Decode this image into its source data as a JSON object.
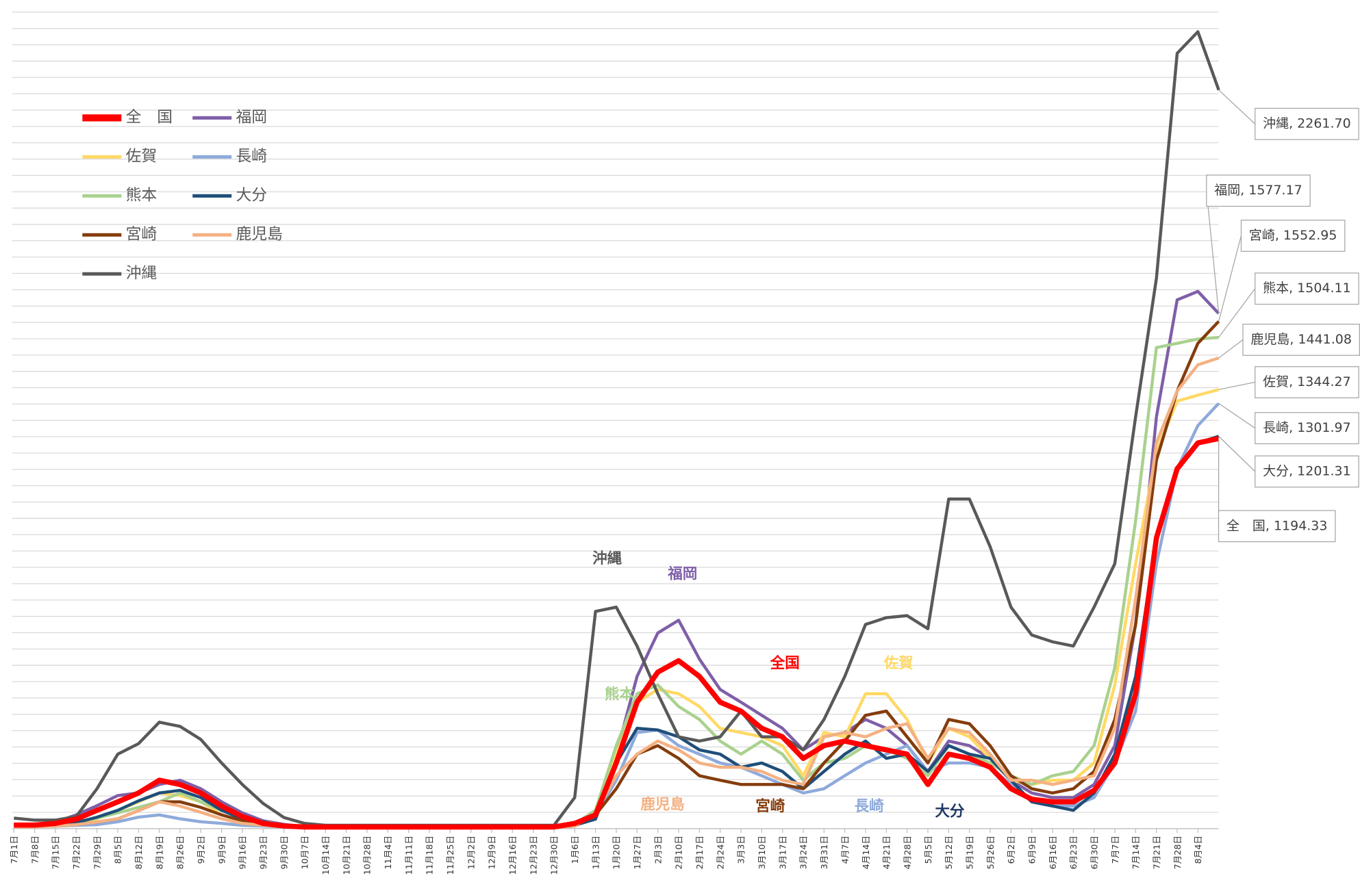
{
  "chart_data": {
    "type": "line",
    "categories": [
      "7月1日",
      "7月8日",
      "7月15日",
      "7月22日",
      "7月29日",
      "8月5日",
      "8月12日",
      "8月19日",
      "8月26日",
      "9月2日",
      "9月9日",
      "9月16日",
      "9月23日",
      "9月30日",
      "10月7日",
      "10月14日",
      "10月21日",
      "10月28日",
      "11月4日",
      "11月11日",
      "11月18日",
      "11月25日",
      "12月2日",
      "12月9日",
      "12月16日",
      "12月23日",
      "12月30日",
      "1月6日",
      "1月13日",
      "1月20日",
      "1月27日",
      "2月3日",
      "2月10日",
      "2月17日",
      "2月24日",
      "3月3日",
      "3月10日",
      "3月17日",
      "3月24日",
      "3月31日",
      "4月7日",
      "4月14日",
      "4月21日",
      "4月28日",
      "5月5日",
      "5月12日",
      "5月19日",
      "5月26日",
      "6月2日",
      "6月9日",
      "6月16日",
      "6月23日",
      "6月30日",
      "7月7日",
      "7月14日",
      "7月21日",
      "7月28日",
      "8月4日",
      null
    ],
    "ylim": [
      0,
      2500
    ],
    "yticks": [
      0,
      50,
      100,
      150,
      200,
      250,
      300,
      350,
      400,
      450,
      500,
      550,
      600,
      650,
      700,
      750,
      800,
      850,
      900,
      950,
      1000,
      1050,
      1100,
      1150,
      1200,
      1250,
      1300,
      1350,
      1400,
      1450,
      1500,
      1550,
      1600,
      1650,
      1700,
      1750,
      1800,
      1850,
      1900,
      1950,
      2000,
      2050,
      2100,
      2150,
      2200,
      2250,
      2300,
      2350,
      2400,
      2450,
      2500
    ],
    "grid": true,
    "series": [
      {
        "name": "全　国",
        "color": "#ff0000",
        "values": [
          11,
          11,
          16,
          29,
          56,
          82,
          109,
          148,
          135,
          109,
          69,
          37,
          16,
          8,
          5,
          5,
          5,
          5,
          5,
          5,
          5,
          5,
          5,
          5,
          5,
          5,
          5,
          16,
          42,
          201,
          387,
          479,
          514,
          466,
          387,
          360,
          307,
          281,
          215,
          254,
          268,
          254,
          241,
          228,
          135,
          228,
          215,
          188,
          122,
          90,
          82,
          82,
          117,
          201,
          413,
          890,
          1102,
          1181,
          1194.33
        ],
        "value_labels": [
          null,
          null,
          null,
          null,
          null,
          null,
          null,
          null,
          null,
          null,
          null,
          null,
          null,
          null,
          null,
          null,
          null,
          null,
          null,
          null,
          null,
          null,
          null,
          null,
          null,
          null,
          null,
          null,
          null,
          null,
          null,
          null,
          null,
          null,
          null,
          null,
          null,
          null,
          null,
          null,
          null,
          null,
          null,
          null,
          null,
          null,
          null,
          null,
          null,
          null,
          null,
          null,
          null,
          null,
          null,
          null,
          null,
          null,
          "全　国, 1194.33"
        ]
      },
      {
        "name": "福岡",
        "color": "#7f5fa8",
        "values": [
          13,
          13,
          20,
          42,
          70,
          101,
          109,
          135,
          148,
          122,
          82,
          48,
          24,
          13,
          5,
          5,
          5,
          5,
          5,
          5,
          5,
          5,
          5,
          5,
          5,
          5,
          5,
          13,
          56,
          228,
          466,
          599,
          638,
          519,
          426,
          387,
          347,
          307,
          241,
          281,
          294,
          334,
          307,
          254,
          175,
          268,
          254,
          215,
          148,
          109,
          95,
          95,
          135,
          254,
          625,
          1261,
          1619,
          1645,
          1577.17
        ],
        "value_labels": [
          null,
          null,
          null,
          null,
          null,
          null,
          null,
          null,
          null,
          null,
          null,
          null,
          null,
          null,
          null,
          null,
          null,
          null,
          null,
          null,
          null,
          null,
          null,
          null,
          null,
          null,
          null,
          null,
          null,
          null,
          null,
          null,
          null,
          null,
          null,
          null,
          null,
          null,
          null,
          null,
          null,
          null,
          null,
          null,
          null,
          null,
          null,
          null,
          null,
          null,
          null,
          null,
          null,
          null,
          null,
          null,
          null,
          null,
          "福岡, 1577.17"
        ]
      },
      {
        "name": "佐賀",
        "color": "#ffd966",
        "values": [
          8,
          8,
          10,
          16,
          30,
          56,
          82,
          109,
          101,
          82,
          42,
          24,
          16,
          8,
          5,
          5,
          5,
          5,
          5,
          5,
          5,
          5,
          5,
          5,
          5,
          5,
          5,
          10,
          42,
          228,
          387,
          426,
          413,
          374,
          307,
          294,
          281,
          254,
          162,
          294,
          281,
          413,
          413,
          334,
          201,
          307,
          281,
          215,
          148,
          135,
          148,
          148,
          201,
          440,
          811,
          1155,
          1309,
          1327,
          1344.27
        ],
        "value_labels": [
          null,
          null,
          null,
          null,
          null,
          null,
          null,
          null,
          null,
          null,
          null,
          null,
          null,
          null,
          null,
          null,
          null,
          null,
          null,
          null,
          null,
          null,
          null,
          null,
          null,
          null,
          null,
          null,
          null,
          null,
          null,
          null,
          null,
          null,
          null,
          null,
          null,
          null,
          null,
          null,
          null,
          null,
          null,
          null,
          null,
          null,
          null,
          null,
          null,
          null,
          null,
          null,
          null,
          null,
          null,
          null,
          null,
          null,
          "佐賀, 1344.27"
        ]
      },
      {
        "name": "長崎",
        "color": "#8eaadb",
        "values": [
          8,
          8,
          8,
          10,
          12,
          21,
          35,
          42,
          30,
          21,
          16,
          10,
          8,
          5,
          3,
          3,
          3,
          3,
          3,
          3,
          3,
          3,
          3,
          3,
          3,
          3,
          3,
          8,
          42,
          148,
          294,
          302,
          254,
          228,
          201,
          188,
          162,
          135,
          109,
          122,
          162,
          201,
          228,
          254,
          175,
          201,
          201,
          188,
          135,
          82,
          69,
          69,
          95,
          201,
          360,
          811,
          1102,
          1234,
          1301.97
        ],
        "value_labels": [
          null,
          null,
          null,
          null,
          null,
          null,
          null,
          null,
          null,
          null,
          null,
          null,
          null,
          null,
          null,
          null,
          null,
          null,
          null,
          null,
          null,
          null,
          null,
          null,
          null,
          null,
          null,
          null,
          null,
          null,
          null,
          null,
          null,
          null,
          null,
          null,
          null,
          null,
          null,
          null,
          null,
          null,
          null,
          null,
          null,
          null,
          null,
          null,
          null,
          null,
          null,
          null,
          null,
          null,
          null,
          null,
          null,
          null,
          "長崎, 1301.97"
        ]
      },
      {
        "name": "熊本",
        "color": "#a9d18e",
        "values": [
          10,
          10,
          12,
          20,
          32,
          48,
          65,
          82,
          109,
          82,
          56,
          32,
          21,
          10,
          5,
          5,
          5,
          5,
          5,
          5,
          5,
          5,
          5,
          5,
          5,
          5,
          5,
          12,
          56,
          254,
          413,
          440,
          374,
          334,
          268,
          228,
          268,
          228,
          148,
          201,
          215,
          254,
          241,
          215,
          162,
          254,
          228,
          201,
          162,
          135,
          162,
          175,
          254,
          493,
          943,
          1473,
          1486,
          1499,
          1504.11
        ],
        "value_labels": [
          null,
          null,
          null,
          null,
          null,
          null,
          null,
          null,
          null,
          null,
          null,
          null,
          null,
          null,
          null,
          null,
          null,
          null,
          null,
          null,
          null,
          null,
          null,
          null,
          null,
          null,
          null,
          null,
          null,
          null,
          null,
          null,
          null,
          null,
          null,
          null,
          null,
          null,
          null,
          null,
          null,
          null,
          null,
          null,
          null,
          null,
          null,
          null,
          null,
          null,
          null,
          null,
          null,
          null,
          null,
          null,
          null,
          null,
          "熊本, 1504.11"
        ]
      },
      {
        "name": "大分",
        "color": "#1f4e79",
        "values": [
          8,
          8,
          10,
          18,
          35,
          56,
          85,
          109,
          117,
          95,
          56,
          30,
          21,
          8,
          5,
          5,
          5,
          5,
          5,
          5,
          5,
          5,
          5,
          5,
          5,
          5,
          5,
          10,
          29,
          201,
          307,
          302,
          281,
          241,
          228,
          188,
          201,
          175,
          122,
          175,
          228,
          268,
          215,
          228,
          175,
          254,
          228,
          215,
          148,
          82,
          69,
          56,
          109,
          228,
          466,
          890,
          1102,
          1181,
          1201.31
        ],
        "value_labels": [
          null,
          null,
          null,
          null,
          null,
          null,
          null,
          null,
          null,
          null,
          null,
          null,
          null,
          null,
          null,
          null,
          null,
          null,
          null,
          null,
          null,
          null,
          null,
          null,
          null,
          null,
          null,
          null,
          null,
          null,
          null,
          null,
          null,
          null,
          null,
          null,
          null,
          null,
          null,
          null,
          null,
          null,
          null,
          null,
          null,
          null,
          null,
          null,
          null,
          null,
          null,
          null,
          null,
          null,
          null,
          null,
          null,
          null,
          "大分, 1201.31"
        ]
      },
      {
        "name": "宮崎",
        "color": "#843c0c",
        "values": [
          8,
          8,
          8,
          12,
          20,
          30,
          55,
          82,
          82,
          65,
          42,
          24,
          16,
          8,
          3,
          3,
          3,
          3,
          3,
          3,
          3,
          3,
          3,
          3,
          3,
          3,
          3,
          8,
          42,
          122,
          228,
          254,
          215,
          162,
          148,
          135,
          135,
          135,
          122,
          201,
          268,
          347,
          360,
          281,
          201,
          334,
          321,
          254,
          162,
          122,
          109,
          122,
          175,
          334,
          625,
          1128,
          1340,
          1486,
          1552.95
        ],
        "value_labels": [
          null,
          null,
          null,
          null,
          null,
          null,
          null,
          null,
          null,
          null,
          null,
          null,
          null,
          null,
          null,
          null,
          null,
          null,
          null,
          null,
          null,
          null,
          null,
          null,
          null,
          null,
          null,
          null,
          null,
          null,
          null,
          null,
          null,
          null,
          null,
          null,
          null,
          null,
          null,
          null,
          null,
          null,
          null,
          null,
          null,
          null,
          null,
          null,
          null,
          null,
          null,
          null,
          null,
          null,
          null,
          null,
          null,
          null,
          "宮崎, 1552.95"
        ]
      },
      {
        "name": "鹿児島",
        "color": "#f4b183",
        "values": [
          5,
          5,
          8,
          12,
          20,
          30,
          55,
          82,
          69,
          50,
          30,
          16,
          10,
          5,
          3,
          3,
          3,
          3,
          3,
          3,
          3,
          3,
          3,
          3,
          3,
          3,
          3,
          8,
          48,
          162,
          228,
          268,
          241,
          201,
          188,
          188,
          175,
          148,
          135,
          281,
          294,
          281,
          307,
          321,
          215,
          307,
          294,
          228,
          148,
          148,
          135,
          148,
          162,
          307,
          704,
          1181,
          1340,
          1420,
          1441.08
        ],
        "value_labels": [
          null,
          null,
          null,
          null,
          null,
          null,
          null,
          null,
          null,
          null,
          null,
          null,
          null,
          null,
          null,
          null,
          null,
          null,
          null,
          null,
          null,
          null,
          null,
          null,
          null,
          null,
          null,
          null,
          null,
          null,
          null,
          null,
          null,
          null,
          null,
          null,
          null,
          null,
          null,
          null,
          null,
          null,
          null,
          null,
          null,
          null,
          null,
          null,
          null,
          null,
          null,
          null,
          null,
          null,
          null,
          null,
          null,
          null,
          "鹿児島, 1441.08"
        ]
      },
      {
        "name": "沖縄",
        "color": "#595959",
        "values": [
          32,
          26,
          26,
          37,
          122,
          228,
          260,
          326,
          313,
          273,
          201,
          135,
          77,
          34,
          16,
          10,
          10,
          10,
          10,
          10,
          10,
          10,
          10,
          10,
          10,
          10,
          10,
          95,
          665,
          678,
          559,
          413,
          281,
          268,
          281,
          360,
          281,
          281,
          241,
          334,
          466,
          625,
          646,
          652,
          612,
          1009,
          1009,
          863,
          678,
          593,
          572,
          559,
          678,
          811,
          1261,
          1685,
          2374,
          2440,
          2261.7
        ],
        "value_labels": [
          null,
          null,
          null,
          null,
          null,
          null,
          null,
          null,
          null,
          null,
          null,
          null,
          null,
          null,
          null,
          null,
          null,
          null,
          null,
          null,
          null,
          null,
          null,
          null,
          null,
          null,
          null,
          null,
          null,
          null,
          null,
          null,
          null,
          null,
          null,
          null,
          null,
          null,
          null,
          null,
          null,
          null,
          null,
          null,
          null,
          null,
          null,
          null,
          null,
          null,
          null,
          null,
          null,
          null,
          null,
          null,
          null,
          null,
          "沖縄, 2261.70"
        ]
      }
    ],
    "annotations": [
      {
        "text": "沖縄",
        "color": "#595959"
      },
      {
        "text": "福岡",
        "color": "#7f5fa8"
      },
      {
        "text": "全国",
        "color": "#ff0000"
      },
      {
        "text": "佐賀",
        "color": "#ffd966"
      },
      {
        "text": "熊本",
        "color": "#a9d18e"
      },
      {
        "text": "鹿児島",
        "color": "#f4b183"
      },
      {
        "text": "宮崎",
        "color": "#843c0c"
      },
      {
        "text": "長崎",
        "color": "#8eaadb"
      },
      {
        "text": "大分",
        "color": "#1f3864"
      }
    ]
  }
}
